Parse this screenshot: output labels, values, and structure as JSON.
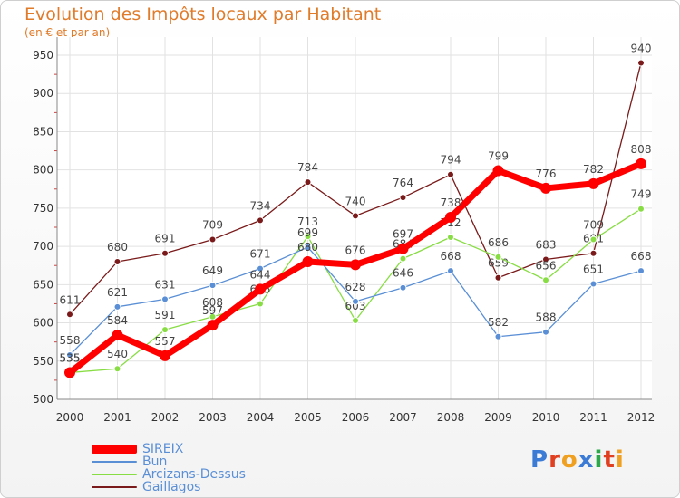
{
  "chart_data": {
    "type": "line",
    "title": "Evolution des Impôts locaux par Habitant",
    "subtitle": "(en € et par an)",
    "categories": [
      "2000",
      "2001",
      "2002",
      "2003",
      "2004",
      "2005",
      "2006",
      "2007",
      "2008",
      "2009",
      "2010",
      "2011",
      "2012"
    ],
    "ylim": [
      500,
      950
    ],
    "yticks": [
      500,
      550,
      600,
      650,
      700,
      750,
      800,
      850,
      900,
      950
    ],
    "series": [
      {
        "name": "Gaillagos",
        "color": "#7a1a1a",
        "values": [
          611,
          680,
          691,
          709,
          734,
          784,
          740,
          764,
          794,
          659,
          683,
          691,
          940
        ]
      },
      {
        "name": "Arcizans-Dessus",
        "color": "#88dd44",
        "values": [
          535,
          540,
          591,
          608,
          625,
          713,
          603,
          684,
          712,
          686,
          656,
          709,
          749
        ]
      },
      {
        "name": "Bun",
        "color": "#5a8fd6",
        "values": [
          558,
          621,
          631,
          649,
          671,
          699,
          628,
          646,
          668,
          582,
          588,
          651,
          668
        ]
      },
      {
        "name": "SIREIX",
        "color": "#ff0000",
        "values": [
          535,
          584,
          557,
          597,
          644,
          680,
          676,
          697,
          738,
          799,
          776,
          782,
          808
        ]
      }
    ]
  },
  "legend": {
    "items": [
      {
        "name": "SIREIX",
        "color": "#ff0000"
      },
      {
        "name": "Bun",
        "color": "#5a8fd6"
      },
      {
        "name": "Arcizans-Dessus",
        "color": "#88dd44"
      },
      {
        "name": "Gaillagos",
        "color": "#7a1a1a"
      }
    ]
  },
  "logo": {
    "text": "Proxiti"
  }
}
